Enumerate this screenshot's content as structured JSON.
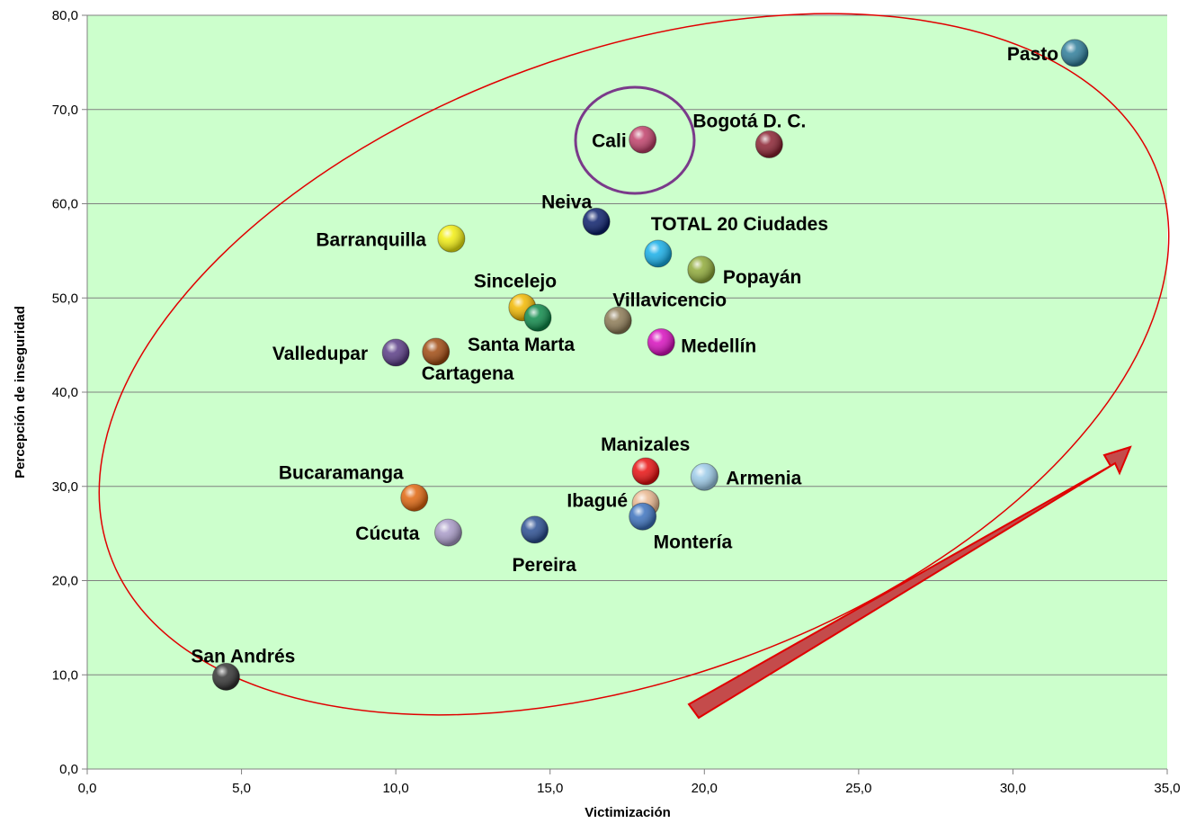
{
  "chart_data": {
    "type": "scatter",
    "title": "",
    "xlabel": "Victimización",
    "ylabel": "Percepción de inseguridad",
    "xlim": [
      0,
      35
    ],
    "ylim": [
      0,
      80
    ],
    "x_ticks": [
      "0,0",
      "5,0",
      "10,0",
      "15,0",
      "20,0",
      "25,0",
      "30,0",
      "35,0"
    ],
    "y_ticks": [
      "0,0",
      "10,0",
      "20,0",
      "30,0",
      "40,0",
      "50,0",
      "60,0",
      "70,0",
      "80,0"
    ],
    "grid": true,
    "plot_background": "#CCFFCC",
    "points": [
      {
        "label": "Pasto",
        "x": 32.0,
        "y": 76.0,
        "color": "#2E7D9A"
      },
      {
        "label": "Cali",
        "x": 18.0,
        "y": 66.8,
        "color": "#C0406A"
      },
      {
        "label": "Bogotá D. C.",
        "x": 22.1,
        "y": 66.3,
        "color": "#8B2232"
      },
      {
        "label": "Neiva",
        "x": 16.5,
        "y": 58.1,
        "color": "#0B1F6B"
      },
      {
        "label": "Barranquilla",
        "x": 11.8,
        "y": 56.3,
        "color": "#F2EE10"
      },
      {
        "label": "TOTAL 20 Ciudades",
        "x": 18.5,
        "y": 54.7,
        "color": "#16AEE8"
      },
      {
        "label": "Popayán",
        "x": 19.9,
        "y": 53.0,
        "color": "#8FAA38"
      },
      {
        "label": "Sincelejo",
        "x": 14.1,
        "y": 49.0,
        "color": "#F2B800"
      },
      {
        "label": "Santa Marta",
        "x": 14.6,
        "y": 47.9,
        "color": "#0E8A4A"
      },
      {
        "label": "Villavicencio",
        "x": 17.2,
        "y": 47.6,
        "color": "#8C7A55"
      },
      {
        "label": "Medellín",
        "x": 18.6,
        "y": 45.3,
        "color": "#D80FBE"
      },
      {
        "label": "Valledupar",
        "x": 10.0,
        "y": 44.2,
        "color": "#5A3C86"
      },
      {
        "label": "Cartagena",
        "x": 11.3,
        "y": 44.3,
        "color": "#A04A10"
      },
      {
        "label": "Manizales",
        "x": 18.1,
        "y": 31.6,
        "color": "#E81010"
      },
      {
        "label": "Armenia",
        "x": 20.0,
        "y": 31.0,
        "color": "#9CCBE8"
      },
      {
        "label": "Bucaramanga",
        "x": 10.6,
        "y": 28.8,
        "color": "#E0660E"
      },
      {
        "label": "Ibagué",
        "x": 18.1,
        "y": 28.2,
        "color": "#EAB890"
      },
      {
        "label": "Montería",
        "x": 18.0,
        "y": 26.8,
        "color": "#3C72BE"
      },
      {
        "label": "Cúcuta",
        "x": 11.7,
        "y": 25.1,
        "color": "#A99BC8"
      },
      {
        "label": "Pereira",
        "x": 14.5,
        "y": 25.4,
        "color": "#2A4E92"
      },
      {
        "label": "San Andrés",
        "x": 4.5,
        "y": 9.8,
        "color": "#333333"
      }
    ]
  }
}
